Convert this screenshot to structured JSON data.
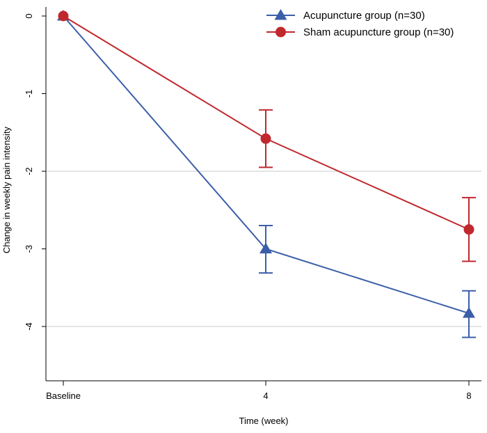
{
  "chart_data": {
    "type": "line",
    "title": "",
    "xlabel": "Time (week)",
    "ylabel": "Change in weekly pain intensity",
    "categories": [
      "Baseline",
      "4",
      "8"
    ],
    "x": [
      0,
      4,
      8
    ],
    "ylim": [
      -4.75,
      0.1
    ],
    "yticks": [
      0,
      -1,
      -2,
      -3,
      -4
    ],
    "ytick_labels": [
      "0",
      "-1",
      "-2",
      "-3",
      "-4"
    ],
    "gridlines_y": [
      -2,
      -4
    ],
    "legend_position": "top-right",
    "series": [
      {
        "name": "Acupuncture group (n=30)",
        "color": "#3b5ea8",
        "marker": "triangle",
        "values": [
          0,
          -3.0,
          -3.83
        ],
        "error_upper": [
          null,
          -2.7,
          -3.54
        ],
        "error_lower": [
          null,
          -3.31,
          -4.14
        ]
      },
      {
        "name": "Sham acupuncture group (n=30)",
        "color": "#c0282e",
        "marker": "circle",
        "values": [
          0,
          -1.58,
          -2.75
        ],
        "error_upper": [
          null,
          -1.21,
          -2.34
        ],
        "error_lower": [
          null,
          -1.95,
          -3.16
        ]
      }
    ]
  }
}
